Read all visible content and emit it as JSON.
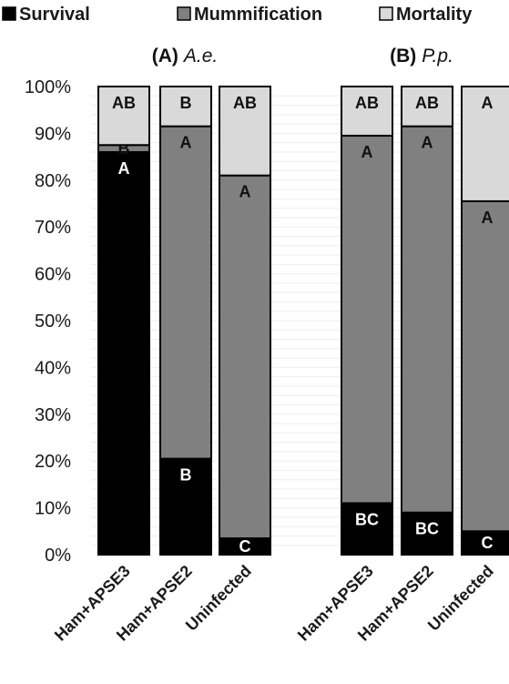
{
  "chart_data": {
    "type": "bar",
    "stacked": true,
    "percent": true,
    "ylim": [
      0,
      100
    ],
    "yticks": [
      "0%",
      "10%",
      "20%",
      "30%",
      "40%",
      "50%",
      "60%",
      "70%",
      "80%",
      "90%",
      "100%"
    ],
    "legend": {
      "placement": "top",
      "items": [
        {
          "name": "Survival",
          "color": "#000000"
        },
        {
          "name": "Mummification",
          "color": "#808080"
        },
        {
          "name": "Mortality",
          "color": "#d9d9d9"
        }
      ]
    },
    "panels": [
      {
        "label": "(A)",
        "species": "A.e.",
        "categories": [
          "Ham+APSE3",
          "Ham+APSE2",
          "Uninfected"
        ],
        "series": [
          {
            "name": "Survival",
            "values": [
              86,
              20.5,
              3.5
            ],
            "letters": [
              "A",
              "B",
              "C"
            ]
          },
          {
            "name": "Mummification",
            "values": [
              1.5,
              71,
              77.5
            ],
            "letters": [
              "B",
              "A",
              "A"
            ]
          },
          {
            "name": "Mortality",
            "values": [
              12.5,
              8.5,
              19
            ],
            "letters": [
              "AB",
              "B",
              "AB"
            ]
          }
        ]
      },
      {
        "label": "(B)",
        "species": "P.p.",
        "categories": [
          "Ham+APSE3",
          "Ham+APSE2",
          "Uninfected"
        ],
        "series": [
          {
            "name": "Survival",
            "values": [
              11,
              9,
              5
            ],
            "letters": [
              "BC",
              "BC",
              "C"
            ]
          },
          {
            "name": "Mummification",
            "values": [
              78.5,
              82.5,
              70.5
            ],
            "letters": [
              "A",
              "A",
              "A"
            ]
          },
          {
            "name": "Mortality",
            "values": [
              10.5,
              8.5,
              24.5
            ],
            "letters": [
              "AB",
              "AB",
              "A"
            ]
          }
        ]
      }
    ]
  }
}
